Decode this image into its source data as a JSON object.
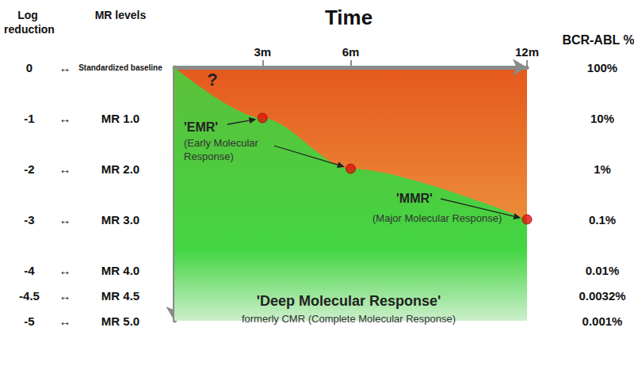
{
  "chart_data": {
    "type": "area",
    "title": "Time",
    "color": "#e5581c",
    "xlim": [
      0,
      12
    ],
    "xticks": [
      {
        "value": 3,
        "label": "3m"
      },
      {
        "value": 6,
        "label": "6m"
      },
      {
        "value": 12,
        "label": "12m"
      }
    ],
    "ylabel": "Log reduction",
    "ylim": [
      -5,
      0
    ],
    "yticks": [
      0,
      -1,
      -2,
      -3,
      -4,
      -4.5,
      -5
    ],
    "mr_levels_label": "MR levels",
    "mr_levels": [
      "Standardized baseline",
      "MR 1.0",
      "MR 2.0",
      "MR 3.0",
      "MR 4.0",
      "MR 4.5",
      "MR 5.0"
    ],
    "link_symbol": "↔",
    "y2label": "BCR-ABL %",
    "y2_tick_labels": [
      "100%",
      "10%",
      "1%",
      "0.1%",
      "0.01%",
      "0.0032%",
      "0.001%"
    ],
    "grid": false,
    "series": [
      {
        "type": "area",
        "color": "#5cbf3a",
        "x": [
          0,
          3,
          6,
          12
        ],
        "values": [
          0,
          -1,
          -2,
          -3
        ]
      },
      {
        "type": "scatter",
        "color": "#e3120b",
        "marker": "circle",
        "x": [
          3,
          6,
          12
        ],
        "values": [
          -1,
          -2,
          -3
        ]
      }
    ],
    "annotations": {
      "question": "?",
      "emr": "'EMR'",
      "emr_note": "(Early Molecular Response)",
      "mmr": "'MMR'",
      "mmr_note": "(Major Molecular Response)",
      "deep": "'Deep Molecular Response'",
      "deep_note": "formerly CMR (Complete Molecular Response)"
    }
  }
}
